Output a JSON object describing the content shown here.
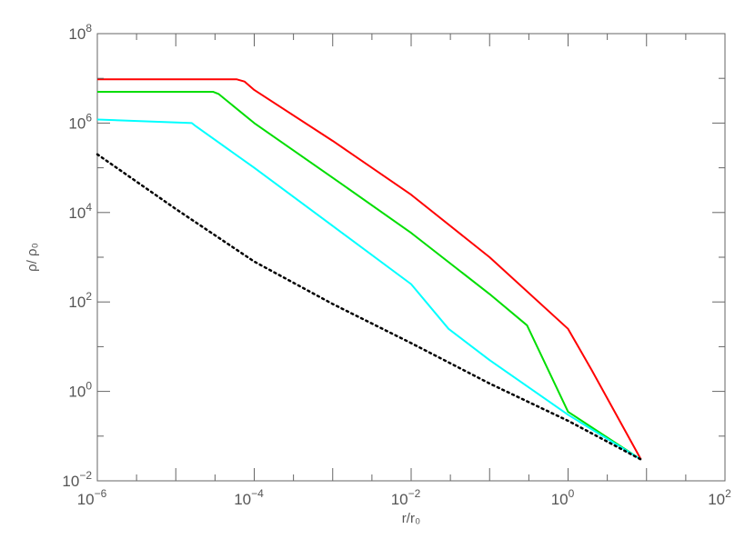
{
  "chart_data": {
    "type": "line",
    "x_scale": "log",
    "y_scale": "log",
    "xlim": [
      1e-06,
      100
    ],
    "ylim": [
      0.01,
      100000000.0
    ],
    "x_ticks": [
      {
        "base": "10",
        "exp": "−6",
        "value": 1e-06
      },
      {
        "base": "10",
        "exp": "−4",
        "value": 0.0001
      },
      {
        "base": "10",
        "exp": "−2",
        "value": 0.01
      },
      {
        "base": "10",
        "exp": "0",
        "value": 1
      },
      {
        "base": "10",
        "exp": "2",
        "value": 100
      }
    ],
    "y_ticks": [
      {
        "base": "10",
        "exp": "−2",
        "value": 0.01
      },
      {
        "base": "10",
        "exp": "0",
        "value": 1
      },
      {
        "base": "10",
        "exp": "2",
        "value": 100
      },
      {
        "base": "10",
        "exp": "4",
        "value": 10000
      },
      {
        "base": "10",
        "exp": "6",
        "value": 1000000
      },
      {
        "base": "10",
        "exp": "8",
        "value": 100000000
      }
    ],
    "xlabel": "r/r₀",
    "ylabel": "ρ/ ρ₀",
    "grid": false,
    "series": [
      {
        "color": "#ff0000",
        "style": "solid",
        "points": [
          [
            1e-06,
            9500000.0
          ],
          [
            6e-05,
            9500000.0
          ],
          [
            7.5e-05,
            8500000.0
          ],
          [
            0.0001,
            5500000.0
          ],
          [
            0.001,
            400000.0
          ],
          [
            0.01,
            25000.0
          ],
          [
            0.1,
            1000.0
          ],
          [
            1,
            25.0
          ],
          [
            2,
            3.0
          ],
          [
            8.5,
            0.03
          ]
        ]
      },
      {
        "color": "#00dd00",
        "style": "solid",
        "points": [
          [
            1e-06,
            5000000.0
          ],
          [
            3e-05,
            5000000.0
          ],
          [
            3.5e-05,
            4500000.0
          ],
          [
            0.0001,
            1000000.0
          ],
          [
            0.001,
            60000.0
          ],
          [
            0.01,
            3500.0
          ],
          [
            0.1,
            150.0
          ],
          [
            0.3,
            30.0
          ],
          [
            1,
            0.35
          ],
          [
            8.5,
            0.03
          ]
        ]
      },
      {
        "color": "#00ffff",
        "style": "solid",
        "points": [
          [
            1e-06,
            1200000.0
          ],
          [
            1.6e-05,
            1000000.0
          ],
          [
            1.8e-05,
            850000.0
          ],
          [
            0.0001,
            100000.0
          ],
          [
            0.001,
            5000.0
          ],
          [
            0.01,
            250.0
          ],
          [
            0.03,
            25.0
          ],
          [
            0.1,
            5.0
          ],
          [
            1,
            0.3
          ],
          [
            8.5,
            0.03
          ]
        ]
      },
      {
        "color": "#000000",
        "style": "dotted",
        "points": [
          [
            1e-06,
            200000.0
          ],
          [
            1e-05,
            12000.0
          ],
          [
            0.0001,
            800.0
          ],
          [
            0.001,
            90.0
          ],
          [
            0.01,
            12.0
          ],
          [
            0.1,
            1.5
          ],
          [
            1,
            0.22
          ],
          [
            8.5,
            0.03
          ]
        ]
      }
    ]
  }
}
